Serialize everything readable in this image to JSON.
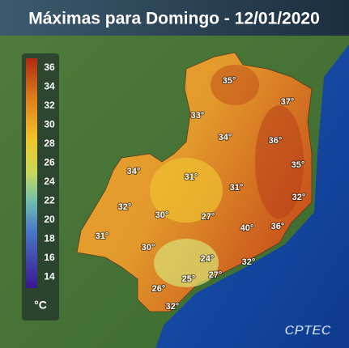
{
  "title": "Máximas para Domingo - 12/01/2020",
  "legend": {
    "ticks": [
      "36",
      "34",
      "32",
      "30",
      "28",
      "26",
      "24",
      "22",
      "20",
      "18",
      "16",
      "14"
    ],
    "unit": "°C"
  },
  "labels": [
    "35°",
    "37°",
    "33°",
    "34°",
    "36°",
    "35°",
    "34°",
    "31°",
    "31°",
    "32°",
    "32°",
    "30°",
    "27°",
    "40°",
    "36°",
    "31°",
    "30°",
    "24°",
    "32°",
    "27°",
    "25°",
    "26°",
    "32°"
  ],
  "logo": "CPTEC"
}
